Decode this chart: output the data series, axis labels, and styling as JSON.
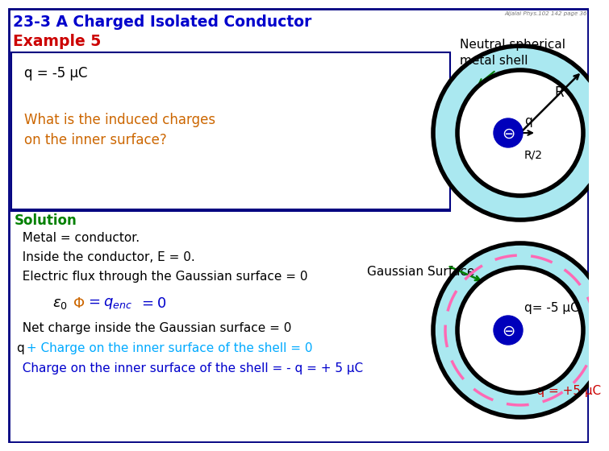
{
  "title": "23-3 A Charged Isolated Conductor",
  "title_color": "#0000cc",
  "example_label": "Example 5",
  "example_color": "#cc0000",
  "watermark": "Aljalal Phys.102 142 page 36",
  "bg_color": "#ffffff",
  "border_color": "#000080",
  "q_label": "q = -5 μC",
  "question_text_1": "What is the induced charges",
  "question_text_2": "on the inner surface?",
  "question_color": "#cc6600",
  "solution_label": "Solution",
  "solution_color": "#008000",
  "metal_text": "  Metal = conductor.",
  "inside_text": "  Inside the conductor, E = 0.",
  "flux_text": "  Electric flux through the Gaussian surface = 0",
  "net_text": "  Net charge inside the Gaussian surface = 0",
  "inner_text_1": "q",
  "inner_text_2": " + Charge on the inner surface of the shell = 0",
  "inner_text_2_color": "#00aaff",
  "final_text": "  Charge on the inner surface of the shell = - q = + 5 μC",
  "final_color": "#0000cc",
  "neutral_text_1": "Neutral spherical",
  "neutral_text_2": "metal shell",
  "gaussian_label": "Gaussian Surface",
  "inner_charge_label": "- q = +5 μC",
  "inner_charge_color": "#cc0000",
  "q_center_label1": "q= -5 μC",
  "shell_fill": "#aae8f0",
  "dashed_circle_color": "#ff69b4",
  "eps_color": "#000000",
  "phi_color": "#cc6600",
  "qenc_color": "#0000cc"
}
